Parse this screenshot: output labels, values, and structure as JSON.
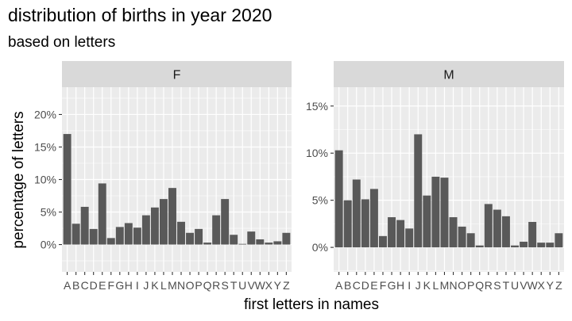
{
  "title": "distribution of births in year 2020",
  "subtitle": "based on letters",
  "chart_data": {
    "type": "bar",
    "title": "distribution of births in year 2020",
    "subtitle": "based on letters",
    "xlabel": "first letters in names",
    "ylabel": "percentage of letters",
    "categories": [
      "A",
      "B",
      "C",
      "D",
      "E",
      "F",
      "G",
      "H",
      "I",
      "J",
      "K",
      "L",
      "M",
      "N",
      "O",
      "P",
      "Q",
      "R",
      "S",
      "T",
      "U",
      "V",
      "W",
      "X",
      "Y",
      "Z"
    ],
    "panels": [
      {
        "facet": "F",
        "ylim": [
          -4.2,
          24.2
        ],
        "yticks": [
          0,
          5,
          10,
          15,
          20
        ],
        "ytick_labels": [
          "0%",
          "5%",
          "10%",
          "15%",
          "20%"
        ],
        "values": [
          17.0,
          3.2,
          5.8,
          2.4,
          9.4,
          1.0,
          2.7,
          3.3,
          2.6,
          4.5,
          5.7,
          7.0,
          8.7,
          3.5,
          1.8,
          2.4,
          0.3,
          4.5,
          7.0,
          1.5,
          0.1,
          2.0,
          0.8,
          0.3,
          0.5,
          1.8
        ]
      },
      {
        "facet": "M",
        "ylim": [
          -2.6,
          17.0
        ],
        "yticks": [
          0,
          5,
          10,
          15
        ],
        "ytick_labels": [
          "0%",
          "5%",
          "10%",
          "15%"
        ],
        "values": [
          10.3,
          5.0,
          7.2,
          5.1,
          6.2,
          1.2,
          3.2,
          2.9,
          2.0,
          12.0,
          5.5,
          7.5,
          7.4,
          3.2,
          2.2,
          1.5,
          0.2,
          4.6,
          4.0,
          3.3,
          0.2,
          0.6,
          2.7,
          0.5,
          0.5,
          1.5
        ]
      }
    ],
    "colors": {
      "bar": "#595959",
      "panel_bg": "#ebebeb",
      "strip_bg": "#d9d9d9",
      "grid": "#ffffff"
    },
    "grid": true,
    "legend": "none"
  }
}
